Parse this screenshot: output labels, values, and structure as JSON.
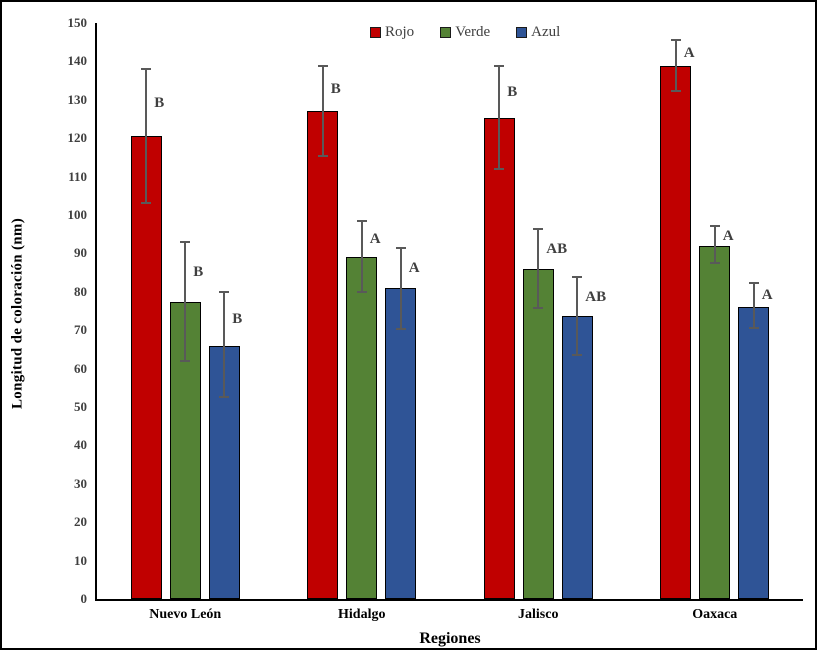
{
  "chart_data": {
    "type": "bar",
    "title": "",
    "xlabel": "Regiones",
    "ylabel": "Longitud de coloración (nm)",
    "ylim": [
      0,
      150
    ],
    "ytick_step": 10,
    "grid": false,
    "legend_position": "top-center",
    "categories": [
      "Nuevo León",
      "Hidalgo",
      "Jalisco",
      "Oaxaca"
    ],
    "series": [
      {
        "name": "Rojo",
        "color": "#C00000",
        "values": [
          120.5,
          127.0,
          125.3,
          138.8
        ],
        "err_low": [
          103.0,
          115.3,
          112.0,
          132.3
        ],
        "err_high": [
          138.0,
          138.7,
          138.8,
          145.5
        ],
        "letters": [
          "B",
          "B",
          "B",
          "A"
        ]
      },
      {
        "name": "Verde",
        "color": "#548235",
        "values": [
          77.3,
          89.0,
          85.9,
          92.0
        ],
        "err_low": [
          62.0,
          80.0,
          75.8,
          87.4
        ],
        "err_high": [
          93.0,
          98.4,
          96.3,
          97.1
        ],
        "letters": [
          "B",
          "A",
          "AB",
          "A"
        ]
      },
      {
        "name": "Azul",
        "color": "#2F5496",
        "values": [
          66.0,
          81.0,
          73.6,
          76.1
        ],
        "err_low": [
          52.5,
          70.4,
          63.5,
          70.5
        ],
        "err_high": [
          80.0,
          91.4,
          83.8,
          82.2
        ],
        "letters": [
          "B",
          "A",
          "AB",
          "A"
        ]
      }
    ],
    "style": {
      "error_bar_color": "#595959",
      "letter_color": "#3f3f3f",
      "axis_color": "#000000",
      "background": "#ffffff"
    }
  }
}
